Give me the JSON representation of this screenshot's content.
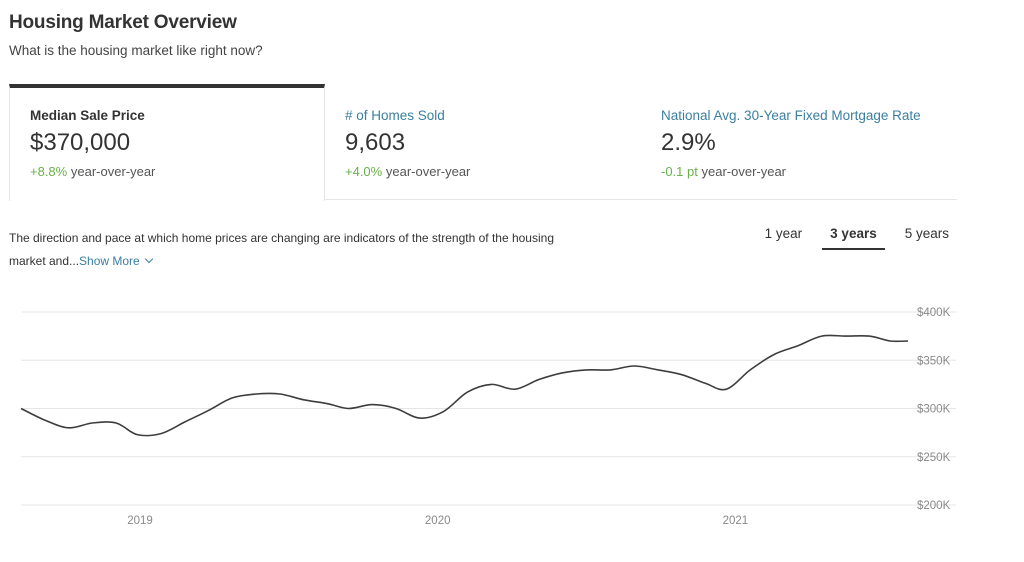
{
  "header": {
    "title": "Housing Market Overview",
    "subtitle": "What is the housing market like right now?"
  },
  "stats": [
    {
      "label": "Median Sale Price",
      "value": "$370,000",
      "change_pct": "+8.8%",
      "change_suffix": "year-over-year"
    },
    {
      "label": "# of Homes Sold",
      "value": "9,603",
      "change_pct": "+4.0%",
      "change_suffix": "year-over-year"
    },
    {
      "label": "National Avg. 30-Year Fixed Mortgage Rate",
      "value": "2.9%",
      "change_pct": "-0.1 pt",
      "change_suffix": "year-over-year"
    }
  ],
  "description": {
    "text": "The direction and pace at which home prices are changing are indicators of the strength of the housing market and...",
    "show_more": "Show More"
  },
  "range_tabs": [
    {
      "label": "1 year",
      "active": false
    },
    {
      "label": "3 years",
      "active": true
    },
    {
      "label": "5 years",
      "active": false
    }
  ],
  "colors": {
    "accent": "#3b7f9f",
    "positive": "#6ab04c",
    "line": "#3d3d3d"
  },
  "chart_data": {
    "type": "line",
    "ylim": [
      200000,
      400000
    ],
    "yticks": [
      {
        "value": 400000,
        "label": "$400K"
      },
      {
        "value": 350000,
        "label": "$350K"
      },
      {
        "value": 300000,
        "label": "$300K"
      },
      {
        "value": 250000,
        "label": "$250K"
      },
      {
        "value": 200000,
        "label": "$200K"
      }
    ],
    "xlim": [
      2018.6,
      2021.58
    ],
    "xticks": [
      {
        "value": 2019.0,
        "label": "2019"
      },
      {
        "value": 2020.0,
        "label": "2020"
      },
      {
        "value": 2021.0,
        "label": "2021"
      }
    ],
    "series": [
      {
        "x": [
          2018.6,
          2018.68,
          2018.76,
          2018.84,
          2018.92,
          2018.99,
          2019.07,
          2019.15,
          2019.23,
          2019.31,
          2019.39,
          2019.47,
          2019.55,
          2019.63,
          2019.7,
          2019.78,
          2019.86,
          2019.94,
          2020.02,
          2020.1,
          2020.18,
          2020.26,
          2020.34,
          2020.42,
          2020.5,
          2020.58,
          2020.66,
          2020.74,
          2020.82,
          2020.9,
          2020.97,
          2021.05,
          2021.13,
          2021.21,
          2021.29,
          2021.37,
          2021.45,
          2021.52,
          2021.58
        ],
        "values": [
          300000,
          288000,
          280000,
          285000,
          285000,
          273000,
          274000,
          286000,
          298000,
          311000,
          315000,
          315000,
          309000,
          305000,
          300000,
          304000,
          300000,
          290000,
          297000,
          317000,
          325000,
          320000,
          330000,
          337000,
          340000,
          340000,
          344000,
          340000,
          335000,
          326000,
          320000,
          340000,
          356000,
          365000,
          375000,
          375000,
          375000,
          370000,
          370000
        ]
      }
    ]
  }
}
